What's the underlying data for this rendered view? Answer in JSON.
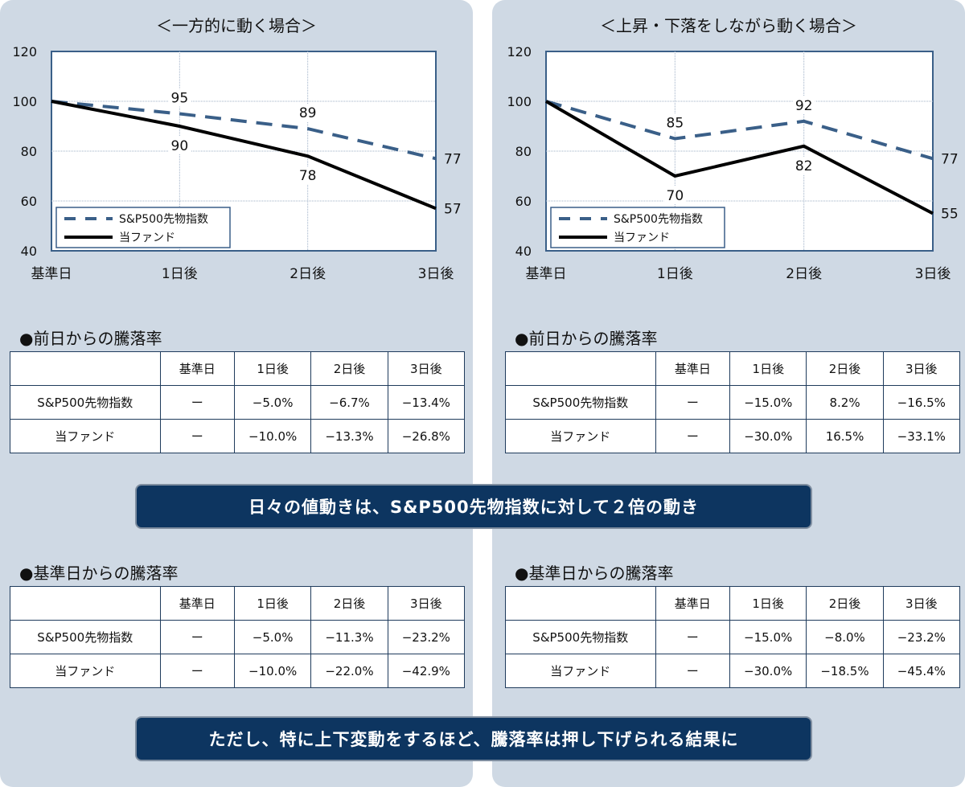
{
  "banner1": "日々の値動きは、S&P500先物指数に対して２倍の動き",
  "banner2": "ただし、特に上下変動をするほど、騰落率は押し下げられる結果に",
  "colors": {
    "index": "#3a5f88",
    "fund": "#000000",
    "panel": "#cfd9e4",
    "banner": "#0d3560"
  },
  "panels": [
    {
      "chart_title": "＜一方的に動く場合＞",
      "daily_heading": "●前日からの騰落率",
      "cum_heading": "●基準日からの騰落率",
      "daily": {
        "header": [
          "",
          "基準日",
          "1日後",
          "2日後",
          "3日後"
        ],
        "rows": [
          [
            "S&P500先物指数",
            "ー",
            "−5.0%",
            "−6.7%",
            "−13.4%"
          ],
          [
            "当ファンド",
            "ー",
            "−10.0%",
            "−13.3%",
            "−26.8%"
          ]
        ]
      },
      "cumulative": {
        "header": [
          "",
          "基準日",
          "1日後",
          "2日後",
          "3日後"
        ],
        "rows": [
          [
            "S&P500先物指数",
            "ー",
            "−5.0%",
            "−11.3%",
            "−23.2%"
          ],
          [
            "当ファンド",
            "ー",
            "−10.0%",
            "−22.0%",
            "−42.9%"
          ]
        ]
      }
    },
    {
      "chart_title": "＜上昇・下落をしながら動く場合＞",
      "daily_heading": "●前日からの騰落率",
      "cum_heading": "●基準日からの騰落率",
      "daily": {
        "header": [
          "",
          "基準日",
          "1日後",
          "2日後",
          "3日後"
        ],
        "rows": [
          [
            "S&P500先物指数",
            "ー",
            "−15.0%",
            "8.2%",
            "−16.5%"
          ],
          [
            "当ファンド",
            "ー",
            "−30.0%",
            "16.5%",
            "−33.1%"
          ]
        ]
      },
      "cumulative": {
        "header": [
          "",
          "基準日",
          "1日後",
          "2日後",
          "3日後"
        ],
        "rows": [
          [
            "S&P500先物指数",
            "ー",
            "−15.0%",
            "−8.0%",
            "−23.2%"
          ],
          [
            "当ファンド",
            "ー",
            "−30.0%",
            "−18.5%",
            "−45.4%"
          ]
        ]
      }
    }
  ],
  "chart_data": [
    {
      "type": "line",
      "title": "＜一方的に動く場合＞",
      "categories": [
        "基準日",
        "1日後",
        "2日後",
        "3日後"
      ],
      "ylim": [
        40,
        120
      ],
      "yticks": [
        40,
        60,
        80,
        100,
        120
      ],
      "grid": true,
      "legend": "bottom-left",
      "series": [
        {
          "name": "S&P500先物指数",
          "style": "dashed",
          "values": [
            100,
            95,
            89,
            77
          ]
        },
        {
          "name": "当ファンド",
          "style": "solid",
          "values": [
            100,
            90,
            78,
            57
          ]
        }
      ]
    },
    {
      "type": "line",
      "title": "＜上昇・下落をしながら動く場合＞",
      "categories": [
        "基準日",
        "1日後",
        "2日後",
        "3日後"
      ],
      "ylim": [
        40,
        120
      ],
      "yticks": [
        40,
        60,
        80,
        100,
        120
      ],
      "grid": true,
      "legend": "bottom-left",
      "series": [
        {
          "name": "S&P500先物指数",
          "style": "dashed",
          "values": [
            100,
            85,
            92,
            77
          ]
        },
        {
          "name": "当ファンド",
          "style": "solid",
          "values": [
            100,
            70,
            82,
            55
          ]
        }
      ]
    }
  ]
}
